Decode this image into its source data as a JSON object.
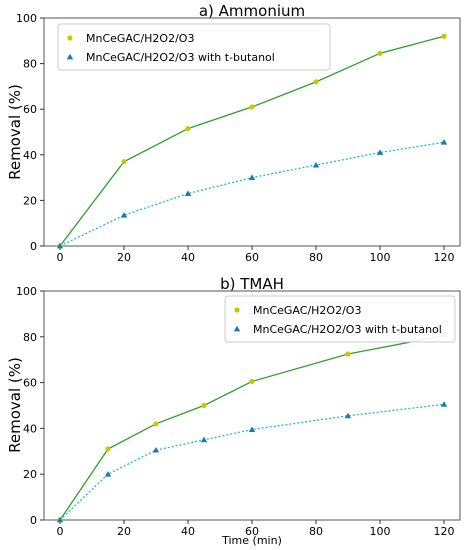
{
  "chart_data": [
    {
      "type": "line",
      "title": "a) Ammonium",
      "xlabel": "",
      "ylabel": "Removal (%)",
      "xlim": [
        -5,
        125
      ],
      "ylim": [
        0,
        100
      ],
      "xticks": [
        0,
        20,
        40,
        60,
        80,
        100,
        120
      ],
      "yticks": [
        0,
        20,
        40,
        60,
        80,
        100
      ],
      "legend_position": "top-left",
      "series": [
        {
          "name": "MnCeGAC/H2O2/O3",
          "x": [
            0,
            20,
            40,
            60,
            80,
            100,
            120
          ],
          "values": [
            0,
            37,
            51.5,
            61,
            72,
            84.5,
            92
          ],
          "line_color": "#2ca02c",
          "marker_color": "#c8c800",
          "marker": "circle",
          "line_style": "solid"
        },
        {
          "name": "MnCeGAC/H2O2/O3 with t-butanol",
          "x": [
            0,
            20,
            40,
            60,
            80,
            100,
            120
          ],
          "values": [
            0,
            13.5,
            23,
            30,
            35.5,
            41,
            45.5
          ],
          "line_color": "#17becf",
          "marker_color": "#1f77b4",
          "marker": "triangle",
          "line_style": "dotted"
        }
      ]
    },
    {
      "type": "line",
      "title": "b) TMAH",
      "xlabel": "Time (min)",
      "ylabel": "Removal (%)",
      "xlim": [
        -5,
        125
      ],
      "ylim": [
        0,
        100
      ],
      "xticks": [
        0,
        20,
        40,
        60,
        80,
        100,
        120
      ],
      "yticks": [
        0,
        20,
        40,
        60,
        80,
        100
      ],
      "legend_position": "top-right",
      "series": [
        {
          "name": "MnCeGAC/H2O2/O3",
          "x": [
            0,
            15,
            30,
            45,
            60,
            90,
            120
          ],
          "values": [
            0,
            31,
            42,
            50,
            60.5,
            72.5,
            80.5
          ],
          "line_color": "#2ca02c",
          "marker_color": "#c8c800",
          "marker": "circle",
          "line_style": "solid"
        },
        {
          "name": "MnCeGAC/H2O2/O3 with t-butanol",
          "x": [
            0,
            15,
            30,
            45,
            60,
            90,
            120
          ],
          "values": [
            0,
            20,
            30.5,
            35,
            39.5,
            45.5,
            50.5
          ],
          "line_color": "#17becf",
          "marker_color": "#1f77b4",
          "marker": "triangle",
          "line_style": "dotted"
        }
      ]
    }
  ]
}
